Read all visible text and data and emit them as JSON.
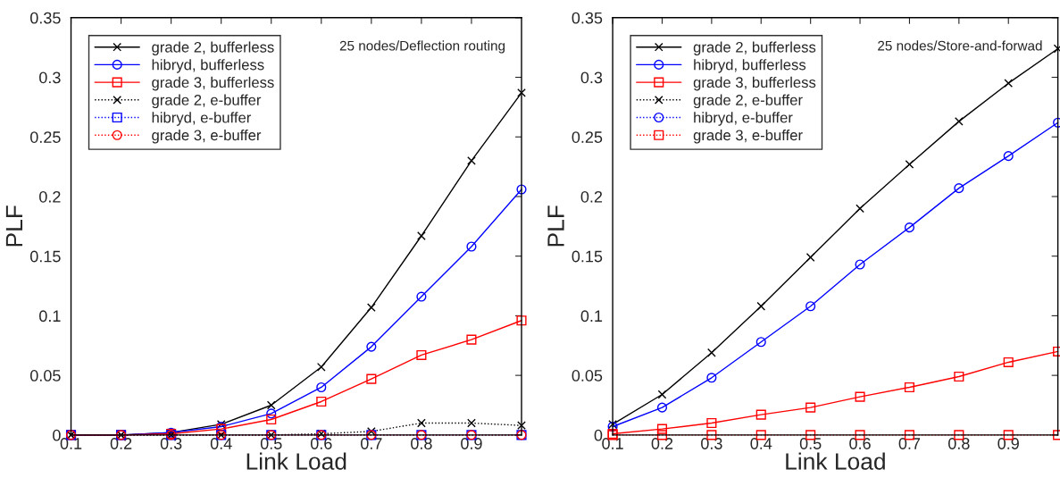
{
  "chart_data": [
    {
      "type": "line",
      "xlabel": "Link Load",
      "ylabel": "PLF",
      "annotations": [
        "25 nodes/Deflection routing"
      ],
      "x": [
        0.1,
        0.2,
        0.3,
        0.4,
        0.5,
        0.6,
        0.7,
        0.8,
        0.9,
        1.0
      ],
      "xlim": [
        0.1,
        1.0
      ],
      "xticks": [
        0.1,
        0.2,
        0.3,
        0.4,
        0.5,
        0.6,
        0.7,
        0.8,
        0.9
      ],
      "ylim": [
        0,
        0.35
      ],
      "yticks": [
        0,
        0.05,
        0.1,
        0.15,
        0.2,
        0.25,
        0.3,
        0.35
      ],
      "grid": false,
      "legend": "top left",
      "series": [
        {
          "name": "grade 2, bufferless",
          "color": "#000000",
          "marker": "cross",
          "line_style": "solid",
          "values": [
            0,
            0,
            0.002,
            0.009,
            0.025,
            0.057,
            0.107,
            0.167,
            0.23,
            0.287
          ]
        },
        {
          "name": "hibryd, bufferless",
          "color": "#0000ff",
          "marker": "circle",
          "line_style": "solid",
          "values": [
            0,
            0,
            0.002,
            0.007,
            0.018,
            0.04,
            0.074,
            0.116,
            0.158,
            0.206
          ]
        },
        {
          "name": "grade 3, bufferless",
          "color": "#ff0000",
          "marker": "square",
          "line_style": "solid",
          "values": [
            0,
            0,
            0.001,
            0.005,
            0.013,
            0.028,
            0.047,
            0.067,
            0.08,
            0.096
          ]
        },
        {
          "name": "grade 2, e-buffer",
          "color": "#000000",
          "marker": "cross",
          "line_style": "dotted",
          "values": [
            0,
            0,
            0,
            0,
            0,
            0.001,
            0.003,
            0.01,
            0.01,
            0.008
          ]
        },
        {
          "name": "hibryd, e-buffer",
          "color": "#0000ff",
          "marker": "square",
          "line_style": "dotted",
          "values": [
            0,
            0,
            0,
            0,
            0,
            0,
            0,
            0,
            0,
            0
          ]
        },
        {
          "name": "grade 3, e-buffer",
          "color": "#ff0000",
          "marker": "circle",
          "line_style": "dotted",
          "values": [
            0,
            0,
            0,
            0,
            0,
            0,
            0,
            0,
            0,
            0
          ]
        }
      ]
    },
    {
      "type": "line",
      "xlabel": "Link Load",
      "ylabel": "PLF",
      "annotations": [
        "25 nodes/Store-and-forwad"
      ],
      "x": [
        0.1,
        0.2,
        0.3,
        0.4,
        0.5,
        0.6,
        0.7,
        0.8,
        0.9,
        1.0
      ],
      "xlim": [
        0.1,
        1.0
      ],
      "xticks": [
        0.1,
        0.2,
        0.3,
        0.4,
        0.5,
        0.6,
        0.7,
        0.8,
        0.9
      ],
      "ylim": [
        0,
        0.35
      ],
      "yticks": [
        0,
        0.05,
        0.1,
        0.15,
        0.2,
        0.25,
        0.3,
        0.35
      ],
      "grid": false,
      "legend": "top left",
      "series": [
        {
          "name": "grade 2, bufferless",
          "color": "#000000",
          "marker": "cross",
          "line_style": "solid",
          "values": [
            0.009,
            0.034,
            0.069,
            0.108,
            0.149,
            0.19,
            0.227,
            0.263,
            0.295,
            0.324
          ]
        },
        {
          "name": "hibryd, bufferless",
          "color": "#0000ff",
          "marker": "circle",
          "line_style": "solid",
          "values": [
            0.007,
            0.023,
            0.048,
            0.078,
            0.108,
            0.143,
            0.174,
            0.207,
            0.234,
            0.262
          ]
        },
        {
          "name": "grade 3, bufferless",
          "color": "#ff0000",
          "marker": "square",
          "line_style": "solid",
          "values": [
            0.001,
            0.005,
            0.01,
            0.017,
            0.023,
            0.032,
            0.04,
            0.049,
            0.061,
            0.07
          ]
        },
        {
          "name": "grade 2, e-buffer",
          "color": "#000000",
          "marker": "cross",
          "line_style": "dotted",
          "values": [
            null,
            null,
            null,
            null,
            null,
            null,
            null,
            null,
            null,
            null
          ]
        },
        {
          "name": "hibryd, e-buffer",
          "color": "#0000ff",
          "marker": "circle",
          "line_style": "dotted",
          "values": [
            null,
            null,
            null,
            null,
            null,
            null,
            null,
            null,
            null,
            null
          ]
        },
        {
          "name": "grade 3, e-buffer",
          "color": "#ff0000",
          "marker": "square",
          "line_style": "dotted",
          "values": [
            0,
            0,
            0,
            0,
            0,
            0,
            0,
            0,
            0,
            0
          ]
        }
      ]
    }
  ]
}
